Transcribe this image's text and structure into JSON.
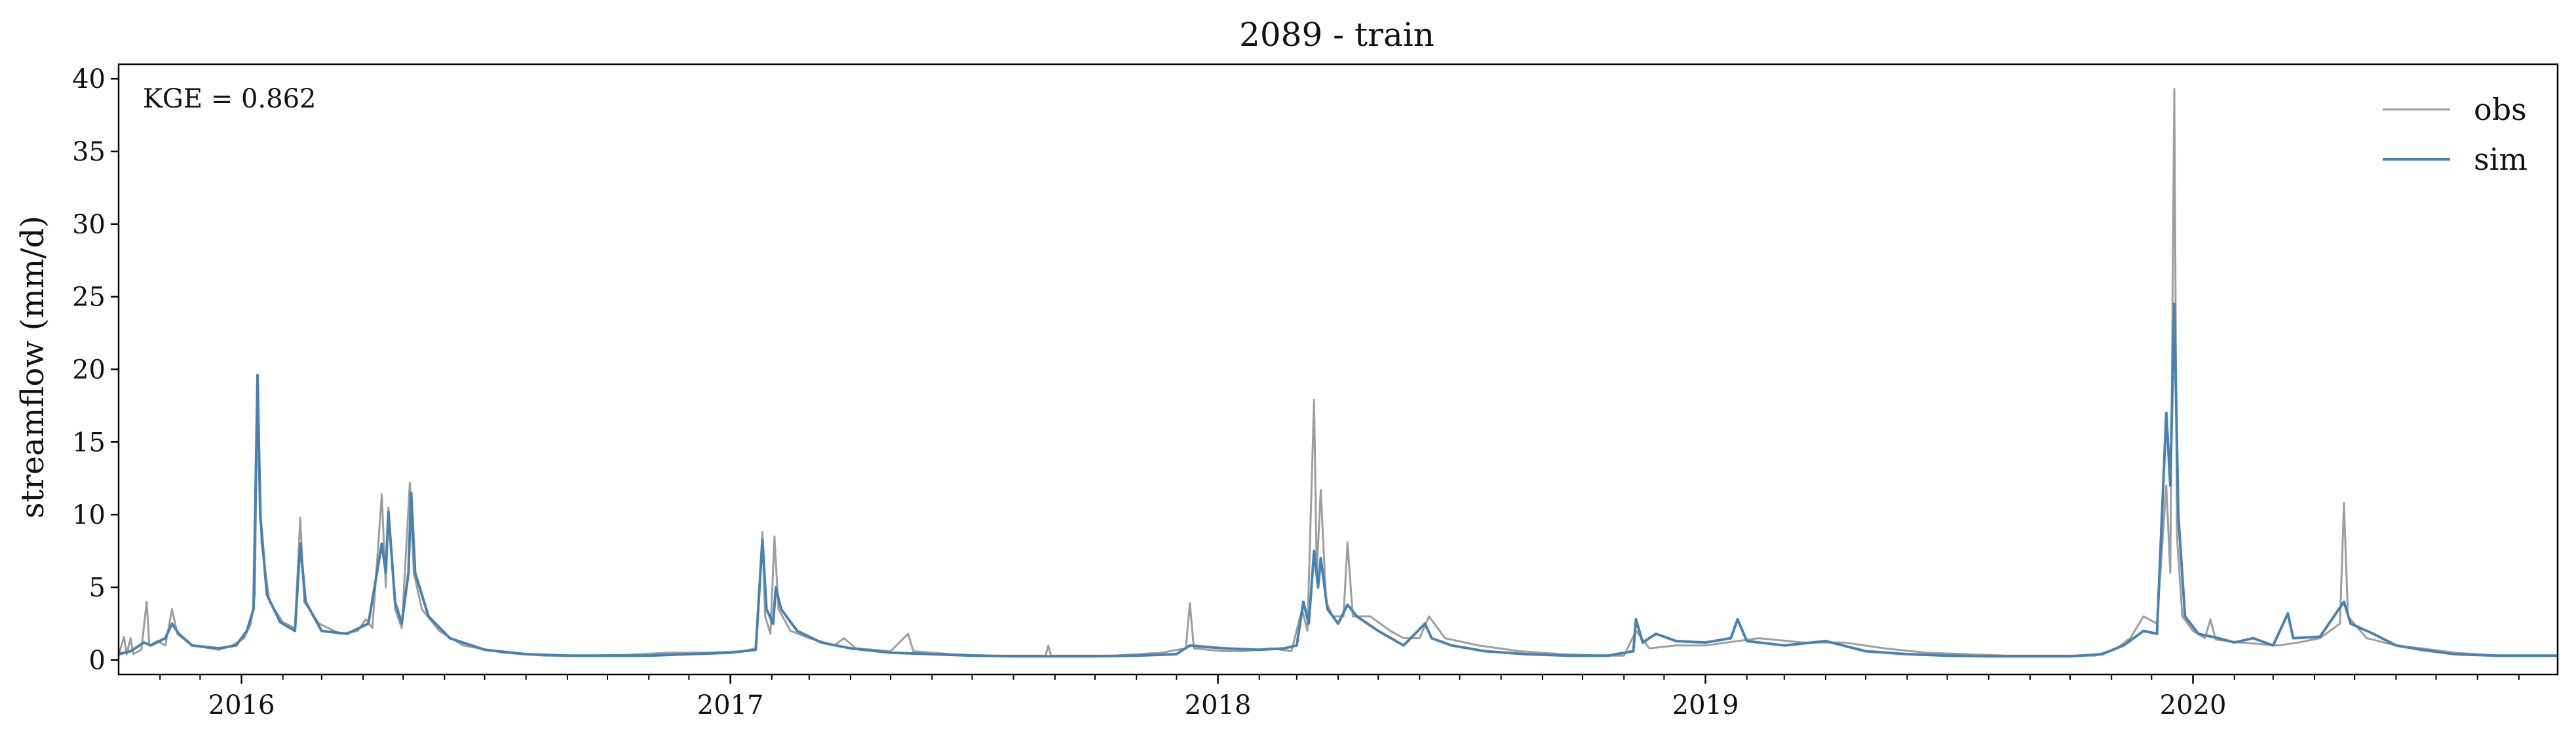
{
  "chart_data": {
    "type": "line",
    "title": "2089 - train",
    "ylabel": "streamflow (mm/d)",
    "xlabel": "",
    "annotation": "KGE = 0.862",
    "xlim": [
      "2015-10-01",
      "2020-09-30"
    ],
    "ylim": [
      -1,
      41
    ],
    "yticks": [
      0,
      5,
      10,
      15,
      20,
      25,
      30,
      35,
      40
    ],
    "xticks": [
      {
        "date": "2016-01-01",
        "label": "2016"
      },
      {
        "date": "2017-01-01",
        "label": "2017"
      },
      {
        "date": "2018-01-01",
        "label": "2018"
      },
      {
        "date": "2019-01-01",
        "label": "2019"
      },
      {
        "date": "2020-01-01",
        "label": "2020"
      }
    ],
    "grid": false,
    "legend": "top-right",
    "series": [
      {
        "name": "obs",
        "color": "#9e9e9e",
        "points": [
          [
            "2015-10-01",
            0.3
          ],
          [
            "2015-10-05",
            1.6
          ],
          [
            "2015-10-07",
            0.4
          ],
          [
            "2015-10-10",
            1.5
          ],
          [
            "2015-10-12",
            0.4
          ],
          [
            "2015-10-18",
            0.7
          ],
          [
            "2015-10-22",
            4.0
          ],
          [
            "2015-10-24",
            1.0
          ],
          [
            "2015-10-30",
            1.3
          ],
          [
            "2015-11-05",
            1.0
          ],
          [
            "2015-11-10",
            3.5
          ],
          [
            "2015-11-14",
            1.8
          ],
          [
            "2015-11-25",
            1.0
          ],
          [
            "2015-12-15",
            0.7
          ],
          [
            "2015-12-25",
            1.0
          ],
          [
            "2016-01-03",
            1.5
          ],
          [
            "2016-01-08",
            2.5
          ],
          [
            "2016-01-11",
            4.5
          ],
          [
            "2016-01-13",
            19.5
          ],
          [
            "2016-01-16",
            8.0
          ],
          [
            "2016-01-22",
            4.0
          ],
          [
            "2016-02-01",
            2.6
          ],
          [
            "2016-02-10",
            2.2
          ],
          [
            "2016-02-14",
            9.8
          ],
          [
            "2016-02-17",
            4.0
          ],
          [
            "2016-02-28",
            2.5
          ],
          [
            "2016-03-15",
            1.8
          ],
          [
            "2016-03-28",
            2.0
          ],
          [
            "2016-04-03",
            2.8
          ],
          [
            "2016-04-08",
            2.2
          ],
          [
            "2016-04-15",
            11.4
          ],
          [
            "2016-04-18",
            5.0
          ],
          [
            "2016-04-20",
            10.5
          ],
          [
            "2016-04-25",
            3.5
          ],
          [
            "2016-04-30",
            2.2
          ],
          [
            "2016-05-06",
            12.2
          ],
          [
            "2016-05-09",
            6.0
          ],
          [
            "2016-05-15",
            3.5
          ],
          [
            "2016-05-28",
            2.0
          ],
          [
            "2016-06-15",
            1.0
          ],
          [
            "2016-07-15",
            0.5
          ],
          [
            "2016-08-15",
            0.3
          ],
          [
            "2016-09-15",
            0.3
          ],
          [
            "2016-10-15",
            0.35
          ],
          [
            "2016-11-15",
            0.5
          ],
          [
            "2016-12-15",
            0.5
          ],
          [
            "2017-01-10",
            0.6
          ],
          [
            "2017-01-20",
            0.8
          ],
          [
            "2017-01-25",
            8.8
          ],
          [
            "2017-01-27",
            3.0
          ],
          [
            "2017-01-31",
            1.8
          ],
          [
            "2017-02-03",
            8.5
          ],
          [
            "2017-02-06",
            3.5
          ],
          [
            "2017-02-15",
            2.0
          ],
          [
            "2017-03-01",
            1.5
          ],
          [
            "2017-03-20",
            1.0
          ],
          [
            "2017-03-27",
            1.5
          ],
          [
            "2017-04-05",
            0.8
          ],
          [
            "2017-05-01",
            0.6
          ],
          [
            "2017-05-14",
            1.8
          ],
          [
            "2017-05-18",
            0.6
          ],
          [
            "2017-06-15",
            0.4
          ],
          [
            "2017-07-15",
            0.3
          ],
          [
            "2017-08-25",
            0.3
          ],
          [
            "2017-08-27",
            1.0
          ],
          [
            "2017-08-29",
            0.3
          ],
          [
            "2017-10-15",
            0.3
          ],
          [
            "2017-11-20",
            0.5
          ],
          [
            "2017-12-08",
            0.8
          ],
          [
            "2017-12-11",
            3.9
          ],
          [
            "2017-12-14",
            0.8
          ],
          [
            "2018-01-05",
            0.6
          ],
          [
            "2018-01-20",
            0.6
          ],
          [
            "2018-02-10",
            0.8
          ],
          [
            "2018-02-25",
            0.6
          ],
          [
            "2018-03-05",
            3.5
          ],
          [
            "2018-03-09",
            2.0
          ],
          [
            "2018-03-14",
            17.9
          ],
          [
            "2018-03-16",
            6.0
          ],
          [
            "2018-03-19",
            11.7
          ],
          [
            "2018-03-23",
            4.0
          ],
          [
            "2018-03-28",
            3.0
          ],
          [
            "2018-04-05",
            3.0
          ],
          [
            "2018-04-08",
            8.1
          ],
          [
            "2018-04-12",
            3.0
          ],
          [
            "2018-04-25",
            3.0
          ],
          [
            "2018-05-10",
            2.0
          ],
          [
            "2018-05-20",
            1.5
          ],
          [
            "2018-06-01",
            1.5
          ],
          [
            "2018-06-08",
            3.0
          ],
          [
            "2018-06-20",
            1.5
          ],
          [
            "2018-07-15",
            1.0
          ],
          [
            "2018-08-15",
            0.6
          ],
          [
            "2018-09-15",
            0.4
          ],
          [
            "2018-10-15",
            0.3
          ],
          [
            "2018-11-01",
            0.3
          ],
          [
            "2018-11-10",
            2.0
          ],
          [
            "2018-11-20",
            0.8
          ],
          [
            "2018-12-10",
            1.0
          ],
          [
            "2019-01-01",
            1.0
          ],
          [
            "2019-02-10",
            1.5
          ],
          [
            "2019-03-15",
            1.2
          ],
          [
            "2019-04-15",
            1.2
          ],
          [
            "2019-05-15",
            0.8
          ],
          [
            "2019-06-15",
            0.5
          ],
          [
            "2019-07-15",
            0.4
          ],
          [
            "2019-08-15",
            0.3
          ],
          [
            "2019-09-15",
            0.3
          ],
          [
            "2019-10-20",
            0.3
          ],
          [
            "2019-11-05",
            0.8
          ],
          [
            "2019-11-15",
            1.5
          ],
          [
            "2019-11-25",
            3.0
          ],
          [
            "2019-12-05",
            2.5
          ],
          [
            "2019-12-12",
            12.0
          ],
          [
            "2019-12-15",
            6.0
          ],
          [
            "2019-12-18",
            39.3
          ],
          [
            "2019-12-20",
            8.5
          ],
          [
            "2019-12-24",
            3.0
          ],
          [
            "2020-01-01",
            2.0
          ],
          [
            "2020-01-10",
            1.5
          ],
          [
            "2020-01-14",
            2.8
          ],
          [
            "2020-01-18",
            1.4
          ],
          [
            "2020-02-05",
            1.2
          ],
          [
            "2020-03-05",
            1.0
          ],
          [
            "2020-03-20",
            1.2
          ],
          [
            "2020-04-05",
            1.5
          ],
          [
            "2020-04-20",
            2.5
          ],
          [
            "2020-04-23",
            10.8
          ],
          [
            "2020-04-26",
            3.0
          ],
          [
            "2020-05-10",
            1.5
          ],
          [
            "2020-06-01",
            1.0
          ],
          [
            "2020-06-20",
            0.8
          ],
          [
            "2020-07-15",
            0.5
          ],
          [
            "2020-08-15",
            0.3
          ],
          [
            "2020-09-30",
            0.3
          ]
        ]
      },
      {
        "name": "sim",
        "color": "#4682b4",
        "points": [
          [
            "2015-10-01",
            0.4
          ],
          [
            "2015-10-10",
            0.6
          ],
          [
            "2015-10-20",
            1.2
          ],
          [
            "2015-10-25",
            1.0
          ],
          [
            "2015-11-05",
            1.5
          ],
          [
            "2015-11-10",
            2.5
          ],
          [
            "2015-11-15",
            1.8
          ],
          [
            "2015-11-25",
            1.0
          ],
          [
            "2015-12-15",
            0.8
          ],
          [
            "2015-12-28",
            1.0
          ],
          [
            "2016-01-05",
            2.0
          ],
          [
            "2016-01-10",
            3.5
          ],
          [
            "2016-01-13",
            19.6
          ],
          [
            "2016-01-15",
            10.0
          ],
          [
            "2016-01-20",
            4.5
          ],
          [
            "2016-01-30",
            2.6
          ],
          [
            "2016-02-10",
            2.0
          ],
          [
            "2016-02-14",
            8.0
          ],
          [
            "2016-02-18",
            4.0
          ],
          [
            "2016-03-01",
            2.0
          ],
          [
            "2016-03-20",
            1.8
          ],
          [
            "2016-04-05",
            2.5
          ],
          [
            "2016-04-15",
            8.0
          ],
          [
            "2016-04-18",
            6.0
          ],
          [
            "2016-04-20",
            10.2
          ],
          [
            "2016-04-25",
            4.0
          ],
          [
            "2016-04-30",
            2.5
          ],
          [
            "2016-05-05",
            6.0
          ],
          [
            "2016-05-07",
            11.5
          ],
          [
            "2016-05-10",
            6.0
          ],
          [
            "2016-05-20",
            3.0
          ],
          [
            "2016-06-05",
            1.5
          ],
          [
            "2016-07-01",
            0.7
          ],
          [
            "2016-08-01",
            0.4
          ],
          [
            "2016-09-01",
            0.3
          ],
          [
            "2016-10-01",
            0.3
          ],
          [
            "2016-11-01",
            0.3
          ],
          [
            "2016-12-01",
            0.4
          ],
          [
            "2017-01-01",
            0.5
          ],
          [
            "2017-01-20",
            0.7
          ],
          [
            "2017-01-25",
            8.3
          ],
          [
            "2017-01-28",
            3.5
          ],
          [
            "2017-02-02",
            2.5
          ],
          [
            "2017-02-04",
            5.0
          ],
          [
            "2017-02-08",
            3.5
          ],
          [
            "2017-02-20",
            2.0
          ],
          [
            "2017-03-10",
            1.2
          ],
          [
            "2017-04-01",
            0.8
          ],
          [
            "2017-05-01",
            0.5
          ],
          [
            "2017-06-01",
            0.4
          ],
          [
            "2017-07-01",
            0.3
          ],
          [
            "2017-08-01",
            0.25
          ],
          [
            "2017-09-01",
            0.25
          ],
          [
            "2017-10-01",
            0.25
          ],
          [
            "2017-11-01",
            0.3
          ],
          [
            "2017-12-01",
            0.4
          ],
          [
            "2017-12-11",
            1.0
          ],
          [
            "2018-01-05",
            0.8
          ],
          [
            "2018-02-01",
            0.7
          ],
          [
            "2018-02-20",
            0.8
          ],
          [
            "2018-03-01",
            1.0
          ],
          [
            "2018-03-06",
            4.0
          ],
          [
            "2018-03-10",
            2.5
          ],
          [
            "2018-03-14",
            7.5
          ],
          [
            "2018-03-17",
            5.0
          ],
          [
            "2018-03-19",
            7.0
          ],
          [
            "2018-03-24",
            3.5
          ],
          [
            "2018-04-01",
            2.5
          ],
          [
            "2018-04-08",
            3.8
          ],
          [
            "2018-04-15",
            3.0
          ],
          [
            "2018-05-01",
            2.0
          ],
          [
            "2018-05-20",
            1.0
          ],
          [
            "2018-06-05",
            2.5
          ],
          [
            "2018-06-10",
            1.5
          ],
          [
            "2018-06-25",
            1.0
          ],
          [
            "2018-07-20",
            0.6
          ],
          [
            "2018-08-20",
            0.4
          ],
          [
            "2018-09-20",
            0.3
          ],
          [
            "2018-10-20",
            0.3
          ],
          [
            "2018-11-08",
            0.6
          ],
          [
            "2018-11-10",
            2.8
          ],
          [
            "2018-11-15",
            1.2
          ],
          [
            "2018-11-25",
            1.8
          ],
          [
            "2018-12-10",
            1.3
          ],
          [
            "2019-01-01",
            1.2
          ],
          [
            "2019-01-20",
            1.5
          ],
          [
            "2019-01-25",
            2.8
          ],
          [
            "2019-02-01",
            1.3
          ],
          [
            "2019-03-01",
            1.0
          ],
          [
            "2019-04-01",
            1.3
          ],
          [
            "2019-05-01",
            0.6
          ],
          [
            "2019-06-01",
            0.4
          ],
          [
            "2019-07-01",
            0.3
          ],
          [
            "2019-08-01",
            0.25
          ],
          [
            "2019-09-01",
            0.25
          ],
          [
            "2019-10-01",
            0.25
          ],
          [
            "2019-10-25",
            0.4
          ],
          [
            "2019-11-10",
            1.0
          ],
          [
            "2019-11-25",
            2.0
          ],
          [
            "2019-12-05",
            1.8
          ],
          [
            "2019-12-12",
            17.0
          ],
          [
            "2019-12-15",
            12.0
          ],
          [
            "2019-12-18",
            24.5
          ],
          [
            "2019-12-21",
            10.0
          ],
          [
            "2019-12-26",
            3.0
          ],
          [
            "2020-01-05",
            1.8
          ],
          [
            "2020-01-20",
            1.5
          ],
          [
            "2020-02-01",
            1.2
          ],
          [
            "2020-02-15",
            1.5
          ],
          [
            "2020-03-01",
            1.0
          ],
          [
            "2020-03-12",
            3.2
          ],
          [
            "2020-03-16",
            1.5
          ],
          [
            "2020-04-05",
            1.6
          ],
          [
            "2020-04-23",
            4.0
          ],
          [
            "2020-04-28",
            2.5
          ],
          [
            "2020-05-15",
            1.8
          ],
          [
            "2020-06-01",
            1.0
          ],
          [
            "2020-06-20",
            0.7
          ],
          [
            "2020-07-15",
            0.4
          ],
          [
            "2020-08-15",
            0.3
          ],
          [
            "2020-09-30",
            0.3
          ]
        ]
      }
    ]
  }
}
